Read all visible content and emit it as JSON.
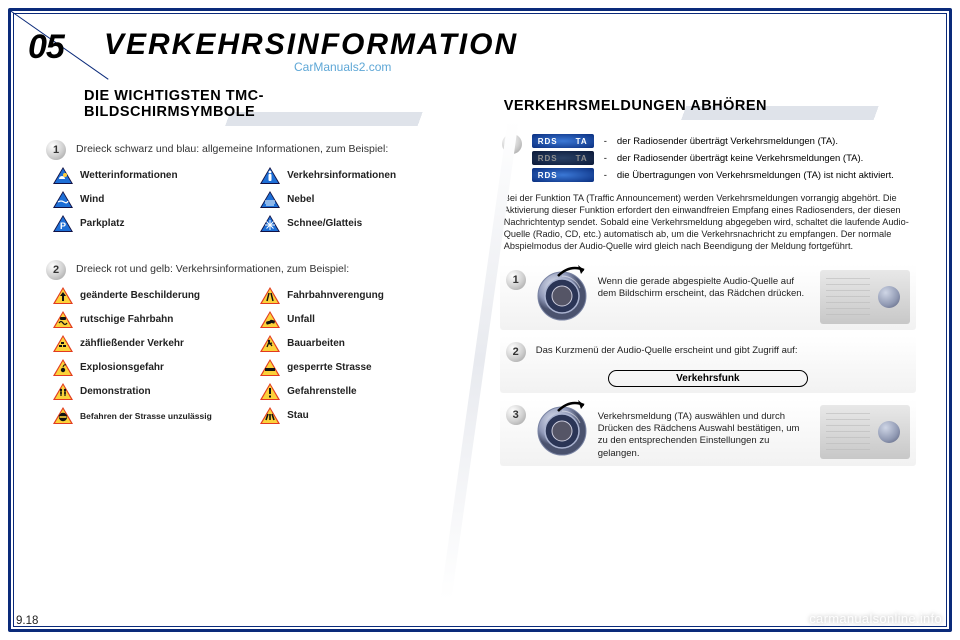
{
  "chapter": {
    "num": "05",
    "title": "VERKEHRSINFORMATION"
  },
  "watermark_top": "CarManuals2.com",
  "watermark_br": "carmanualsonline.info",
  "page_num": "9.18",
  "colors": {
    "brand_border": "#0a2a7a",
    "blue_tri_fill": "#1e6fd6",
    "blue_tri_inner": "#0b2f86",
    "warn_outer": "#e23b1f",
    "warn_inner": "#fbd23a",
    "rds_bg": "#1a4fb0"
  },
  "left": {
    "title_l1": "DIE WICHTIGSTEN TMC-",
    "title_l2": "BILDSCHIRMSYMBOLE",
    "lead1": "Dreieck schwarz und blau: allgemeine Informationen, zum Beispiel:",
    "items1": [
      {
        "label": "Wetterinformationen",
        "icon": "weather"
      },
      {
        "label": "Verkehrsinformationen",
        "icon": "info"
      },
      {
        "label": "Wind",
        "icon": "wind"
      },
      {
        "label": "Nebel",
        "icon": "fog"
      },
      {
        "label": "Parkplatz",
        "icon": "parking"
      },
      {
        "label": "Schnee/Glatteis",
        "icon": "snow"
      }
    ],
    "lead2": "Dreieck rot und gelb: Verkehrsinformationen, zum Beispiel:",
    "items2": [
      {
        "label": "geänderte Beschilderung",
        "icon": "sign"
      },
      {
        "label": "Fahrbahnverengung",
        "icon": "narrow"
      },
      {
        "label": "rutschige Fahrbahn",
        "icon": "slippery"
      },
      {
        "label": "Unfall",
        "icon": "accident"
      },
      {
        "label": "zähfließender Verkehr",
        "icon": "slow"
      },
      {
        "label": "Bauarbeiten",
        "icon": "construction"
      },
      {
        "label": "Explosionsgefahr",
        "icon": "explosion"
      },
      {
        "label": "gesperrte Strasse",
        "icon": "closed"
      },
      {
        "label": "Demonstration",
        "icon": "demo"
      },
      {
        "label": "Gefahrenstelle",
        "icon": "danger"
      },
      {
        "label": "Befahren der Strasse unzulässig",
        "icon": "noentry"
      },
      {
        "label": "Stau",
        "icon": "jam"
      }
    ]
  },
  "right": {
    "title": "VERKEHRSMELDUNGEN ABHÖREN",
    "rds": [
      {
        "left": "RDS",
        "right": "TA",
        "dim": false,
        "text": "der Radiosender überträgt Verkehrsmeldungen (TA)."
      },
      {
        "left": "RDS",
        "right": "TA",
        "dim": true,
        "text": "der Radiosender überträgt keine Verkehrsmeldungen (TA)."
      },
      {
        "left": "RDS",
        "right": "",
        "dim": false,
        "text": "die Übertragungen von Verkehrsmeldungen (TA) ist nicht aktiviert."
      }
    ],
    "para": "Bei der Funktion TA (Traffic Announcement) werden Verkehrsmeldungen vorrangig abgehört. Die Aktivierung dieser Funktion erfordert den einwandfreien Empfang eines Radiosenders, der diesen Nachrichtentyp sendet. Sobald eine Verkehrsmeldung abgegeben wird, schaltet die laufende Audio-Quelle (Radio, CD, etc.) automatisch ab, um die Verkehrsnachricht zu empfangen. Der normale Abspielmodus der Audio-Quelle wird gleich nach Beendigung der Meldung fortgeführt.",
    "step1": "Wenn die gerade abgespielte Audio-Quelle auf dem Bildschirm erscheint, das Rädchen drücken.",
    "step2_lead": "Das Kurzmenü der Audio-Quelle erscheint und gibt Zugriff auf:",
    "step2_pill": "Verkehrsfunk",
    "step3": "Verkehrsmeldung (TA) auswählen und durch Drücken des Rädchens Auswahl bestätigen, um zu den entsprechenden Einstellungen zu gelangen."
  }
}
